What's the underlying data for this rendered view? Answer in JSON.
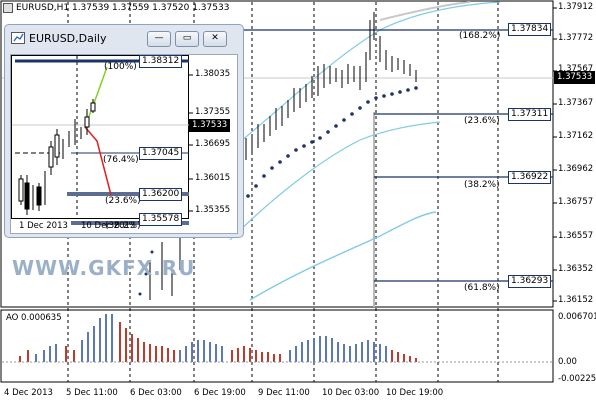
{
  "main_chart": {
    "title": "EURUSD,H1  1.37539 1.37559 1.37520 1.37533",
    "y_axis": [
      "1.37912",
      "1.37772",
      "1.37567",
      "1.37367",
      "1.37162",
      "1.36962",
      "1.36757",
      "1.36557",
      "1.36352",
      "1.36152"
    ],
    "current_price": "1.37533",
    "fib_tags": [
      {
        "percent": "(168.2%)",
        "price": "1.37834"
      },
      {
        "percent": "(23.6%)",
        "price": "1.37311"
      },
      {
        "percent": "(38.2%)",
        "price": "1.36922"
      },
      {
        "percent": "(61.8%)",
        "price": "1.36293"
      }
    ],
    "x_axis": [
      "4 Dec 2013",
      "5 Dec 11:00",
      "6 Dec 03:00",
      "6 Dec 19:00",
      "9 Dec 11:00",
      "10 Dec 03:00",
      "10 Dec 19:00"
    ]
  },
  "oscillator": {
    "label": "AO 0.000635",
    "y_axis": [
      "0.006701",
      "0.00",
      "-0.002253"
    ]
  },
  "daily_window": {
    "title": "EURUSD,Daily",
    "buttons": {
      "minimize": "—",
      "restore": "▭",
      "close": "✕"
    },
    "y_axis": [
      "1.38035",
      "1.37355",
      "1.36695",
      "1.36015",
      "1.35355"
    ],
    "current_price": "1.37533",
    "tags": [
      {
        "percent": "(100%)",
        "price": "1.38312"
      },
      {
        "percent": "(76.4%)",
        "price": "1.37045"
      },
      {
        "percent": "(23.6%)",
        "price": "1.36200"
      },
      {
        "percent": "(38.2%)",
        "price": "1.35578"
      }
    ],
    "x_axis": [
      "1 Dec 2013",
      "10 Dec 2013"
    ]
  },
  "watermark": "WWW.GKFX.RU",
  "colors": {
    "fib_line": "#1c3366",
    "psar_dots": "#1c3366",
    "bands": "#7fcbe6",
    "ao_up": "#5b78b8",
    "ao_down": "#c0392b"
  }
}
